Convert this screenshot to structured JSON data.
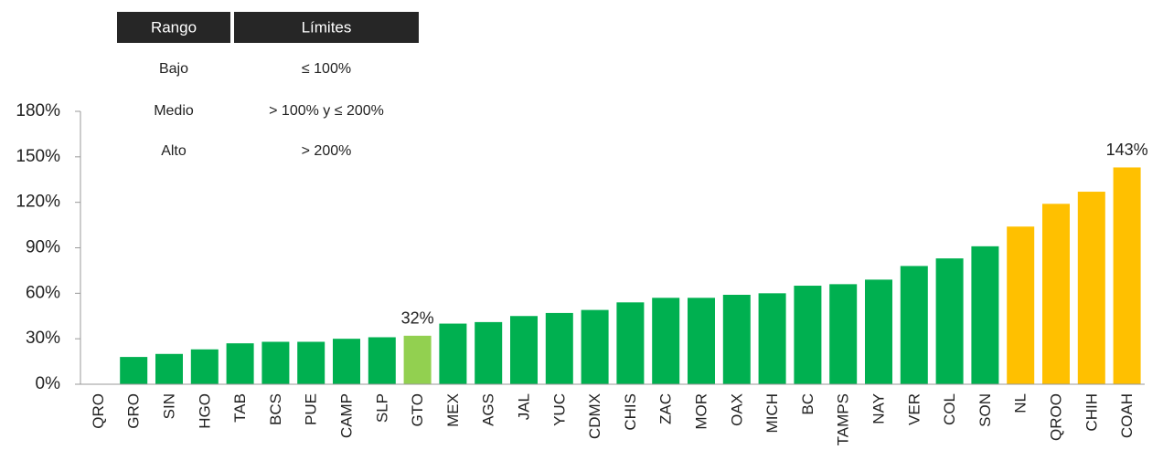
{
  "chart_data": {
    "type": "bar",
    "categories": [
      "QRO",
      "GRO",
      "SIN",
      "HGO",
      "TAB",
      "BCS",
      "PUE",
      "CAMP",
      "SLP",
      "GTO",
      "MEX",
      "AGS",
      "JAL",
      "YUC",
      "CDMX",
      "CHIS",
      "ZAC",
      "MOR",
      "OAX",
      "MICH",
      "BC",
      "TAMPS",
      "NAY",
      "VER",
      "COL",
      "SON",
      "NL",
      "QROO",
      "CHIH",
      "COAH"
    ],
    "values": [
      0,
      18,
      20,
      23,
      27,
      28,
      28,
      30,
      31,
      32,
      40,
      41,
      45,
      47,
      49,
      54,
      57,
      57,
      59,
      60,
      65,
      66,
      69,
      78,
      83,
      91,
      104,
      119,
      127,
      143
    ],
    "value_labels": [
      null,
      null,
      null,
      null,
      null,
      null,
      null,
      null,
      null,
      "32%",
      null,
      null,
      null,
      null,
      null,
      null,
      null,
      null,
      null,
      null,
      null,
      null,
      null,
      null,
      null,
      null,
      null,
      null,
      null,
      "143%"
    ],
    "colors": [
      "#00b050",
      "#00b050",
      "#00b050",
      "#00b050",
      "#00b050",
      "#00b050",
      "#00b050",
      "#00b050",
      "#00b050",
      "#92d050",
      "#00b050",
      "#00b050",
      "#00b050",
      "#00b050",
      "#00b050",
      "#00b050",
      "#00b050",
      "#00b050",
      "#00b050",
      "#00b050",
      "#00b050",
      "#00b050",
      "#00b050",
      "#00b050",
      "#00b050",
      "#00b050",
      "#ffc000",
      "#ffc000",
      "#ffc000",
      "#ffc000"
    ],
    "ylim": [
      0,
      180
    ],
    "yticks": [
      {
        "value": 0,
        "label": "0%"
      },
      {
        "value": 30,
        "label": "30%"
      },
      {
        "value": 60,
        "label": "60%"
      },
      {
        "value": 90,
        "label": "90%"
      },
      {
        "value": 120,
        "label": "120%"
      },
      {
        "value": 150,
        "label": "150%"
      },
      {
        "value": 180,
        "label": "180%"
      }
    ]
  },
  "table": {
    "headers": [
      "Rango",
      "Límites"
    ],
    "rows": [
      [
        "Bajo",
        "≤ 100%"
      ],
      [
        "Medio",
        "> 100% y ≤ 200%"
      ],
      [
        "Alto",
        "> 200%"
      ]
    ]
  }
}
